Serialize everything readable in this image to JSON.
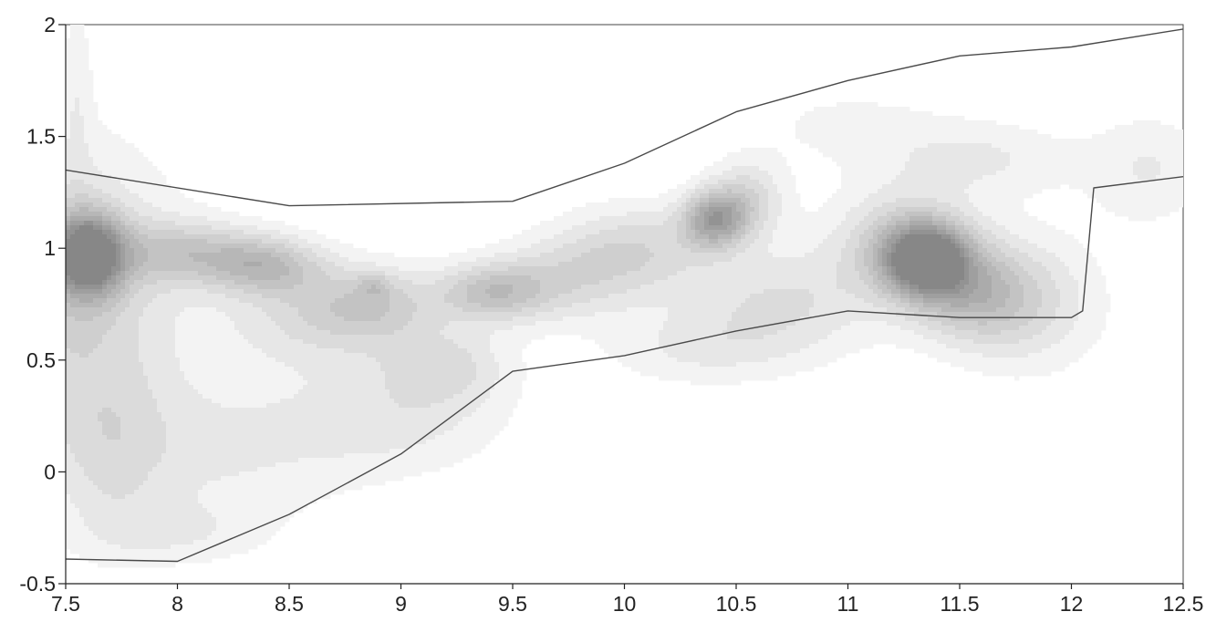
{
  "chart_data": {
    "type": "heatmap",
    "subtype": "filled-contour",
    "title": "",
    "xlabel": "",
    "ylabel": "",
    "xlim": [
      7.5,
      12.5
    ],
    "ylim": [
      -0.5,
      2
    ],
    "x_ticks": [
      "7.5",
      "8",
      "8.5",
      "9",
      "9.5",
      "10",
      "10.5",
      "11",
      "11.5",
      "12",
      "12.5"
    ],
    "y_ticks": [
      "-0.5",
      "0",
      "0.5",
      "1",
      "1.5",
      "2"
    ],
    "grid": false,
    "colormap": [
      "#f3f3f3",
      "#e7e7e7",
      "#dbdbdb",
      "#cfcfcf",
      "#c3c3c3",
      "#b7b7b7",
      "#ababab",
      "#9f9f9f",
      "#939393",
      "#878787"
    ],
    "contour_levels": 10,
    "density_peaks": [
      {
        "x": 7.6,
        "y": 0.95,
        "level": 10
      },
      {
        "x": 8.4,
        "y": 0.95,
        "level": 4
      },
      {
        "x": 8.9,
        "y": 0.85,
        "level": 4
      },
      {
        "x": 9.4,
        "y": 0.8,
        "level": 4
      },
      {
        "x": 10.4,
        "y": 1.12,
        "level": 6
      },
      {
        "x": 11.38,
        "y": 0.92,
        "level": 10
      }
    ],
    "envelope_upper": {
      "x": [
        7.5,
        8.5,
        9.5,
        10.0,
        10.5,
        11.0,
        11.5,
        12.0,
        12.5
      ],
      "y": [
        1.35,
        1.19,
        1.21,
        1.38,
        1.61,
        1.75,
        1.86,
        1.9,
        1.98
      ]
    },
    "envelope_lower": {
      "x": [
        7.5,
        8.0,
        8.5,
        9.0,
        9.5,
        10.0,
        10.5,
        11.0,
        11.5,
        12.0,
        12.05,
        12.1,
        12.5
      ],
      "y": [
        -0.39,
        -0.4,
        -0.19,
        0.08,
        0.45,
        0.52,
        0.63,
        0.72,
        0.69,
        0.69,
        0.72,
        1.27,
        1.32
      ]
    }
  }
}
